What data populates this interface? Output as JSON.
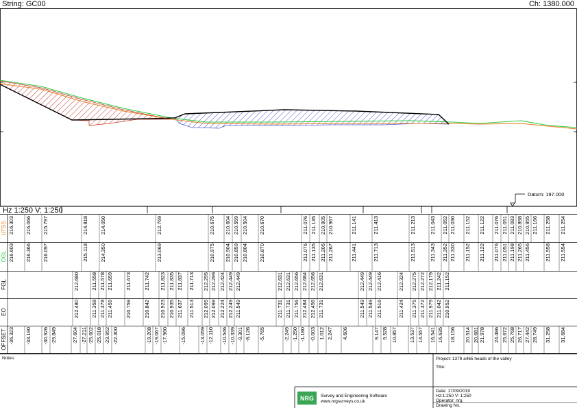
{
  "header": {
    "string": "String: GC00",
    "chainage": "Ch: 1380.000"
  },
  "datum": "Datum: 197.000",
  "scale": "Hz 1:250  V: 1:250",
  "bands": [
    {
      "label": "UTSS",
      "values": [
        "216.303",
        "216.066",
        "215.797",
        "214.818",
        "214.050",
        "212.769",
        "210.675",
        "210.604",
        "210.559",
        "210.504",
        "210.670",
        "211.076",
        "211.135",
        "210.905",
        "210.967",
        "211.141",
        "211.413",
        "211.213",
        "211.043",
        "211.052",
        "211.030",
        "211.152",
        "211.122",
        "211.076",
        "211.051",
        "211.083",
        "210.898",
        "210.955",
        "211.166",
        "211.258",
        "211.254"
      ]
    },
    {
      "label": "OGL",
      "values": [
        "216.603",
        "216.366",
        "216.097",
        "215.118",
        "214.350",
        "213.069",
        "210.975",
        "210.904",
        "210.859",
        "210.804",
        "210.870",
        "211.076",
        "211.135",
        "211.205",
        "211.267",
        "211.441",
        "211.713",
        "211.513",
        "211.343",
        "211.352",
        "211.330",
        "211.152",
        "211.122",
        "211.076",
        "211.051",
        "211.198",
        "211.265",
        "211.456",
        "211.558",
        "211.554"
      ]
    },
    {
      "label": "FGL",
      "values": [
        "212.680",
        "211.558",
        "211.578",
        "211.659",
        "211.673",
        "211.742",
        "211.823",
        "211.835",
        "211.837",
        "211.713",
        "212.295",
        "212.299",
        "212.424",
        "212.449",
        "212.449",
        "212.631",
        "212.631",
        "212.656",
        "212.684",
        "212.656",
        "212.631",
        "212.449",
        "212.449",
        "212.416",
        "212.324",
        "212.275",
        "212.272",
        "212.179",
        "211.242",
        "211.152"
      ]
    },
    {
      "label": "EO",
      "values": [
        "212.480",
        "211.358",
        "211.378",
        "211.459",
        "210.759",
        "210.842",
        "210.923",
        "210.935",
        "211.637",
        "211.513",
        "212.095",
        "212.099",
        "212.224",
        "212.249",
        "211.549",
        "211.731",
        "211.731",
        "211.756",
        "212.484",
        "212.456",
        "211.731",
        "211.549",
        "211.549",
        "211.516",
        "211.424",
        "211.375",
        "211.372",
        "211.979",
        "211.042",
        "210.952"
      ]
    },
    {
      "label": "OFFSET",
      "values": [
        "-36.323",
        "-33.190",
        "-30.926",
        "-29.849",
        "-27.604",
        "-27.211",
        "-25.602",
        "-25.018",
        "-23.952",
        "-22.300",
        "-19.208",
        "-19.067",
        "-17.960",
        "-15.096",
        "-13.059",
        "-12.110",
        "-10.546",
        "-10.339",
        "-9.301",
        "-8.126",
        "-5.765",
        "-2.249",
        "-1.250",
        "-1.180",
        "-0.003",
        "1.012",
        "2.247",
        "4.606",
        "9.147",
        "9.528",
        "10.857",
        "13.537",
        "14.557",
        "16.541",
        "16.635",
        "18.156",
        "20.514",
        "20.681",
        "21.978",
        "24.486",
        "25.672",
        "25.768",
        "26.717",
        "27.442",
        "28.749",
        "31.258",
        "31.684"
      ]
    }
  ],
  "notes": "Notes:",
  "title_block": {
    "project": "Project:  1379 a465 heads of the valley",
    "title": "Title:",
    "logo": "NRG",
    "company": "Survey and Engineering Software",
    "website": "www.nrgsurveys.co.uk",
    "date": "Date:     17/09/2019",
    "scale": "Hz:1:250   V: 1:250",
    "operator": "Operator:  nrg",
    "drawing_no": "Drawing No."
  }
}
